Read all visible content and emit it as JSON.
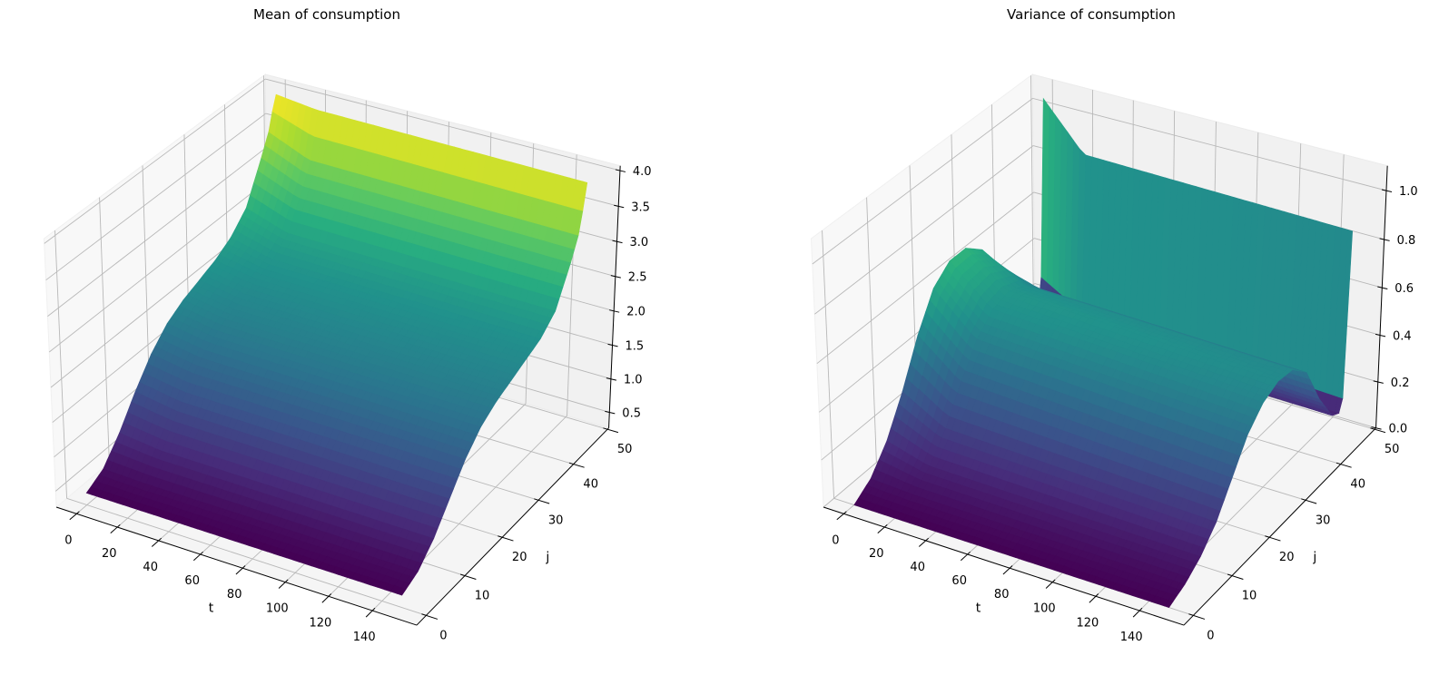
{
  "chart_data": [
    {
      "type": "surface",
      "title": "Mean of consumption",
      "xlabel": "t",
      "ylabel": "j",
      "colormap": "viridis",
      "grid": true,
      "xlim": [
        -10,
        160
      ],
      "ylim": [
        -2.4,
        50.4
      ],
      "zlim": [
        0.264,
        4.066
      ],
      "xticks": [
        "0",
        "20",
        "40",
        "60",
        "80",
        "100",
        "120",
        "140"
      ],
      "yticks": [
        "0",
        "10",
        "20",
        "30",
        "40",
        "50"
      ],
      "zticks": [
        "0.5",
        "1.0",
        "1.5",
        "2.0",
        "2.5",
        "3.0",
        "3.5",
        "4.0"
      ],
      "t_range": [
        0,
        149
      ],
      "t_samples": [
        0,
        20,
        149
      ],
      "j_samples": [
        0,
        4,
        8,
        12,
        16,
        20,
        24,
        28,
        32,
        36,
        40,
        44,
        46,
        47,
        48
      ],
      "z": [
        [
          0.44,
          0.58,
          0.9,
          1.3,
          1.65,
          1.9,
          2.05,
          2.15,
          2.25,
          2.4,
          2.65,
          3.2,
          3.5,
          3.75,
          3.95
        ],
        [
          0.44,
          0.56,
          0.83,
          1.2,
          1.55,
          1.8,
          1.95,
          2.05,
          2.15,
          2.25,
          2.45,
          2.95,
          3.25,
          3.55,
          3.88
        ],
        [
          0.44,
          0.55,
          0.8,
          1.15,
          1.5,
          1.75,
          1.9,
          2.0,
          2.1,
          2.2,
          2.4,
          2.9,
          3.2,
          3.5,
          3.85
        ]
      ]
    },
    {
      "type": "surface",
      "title": "Variance of consumption",
      "xlabel": "t",
      "ylabel": "j",
      "colormap": "viridis",
      "grid": true,
      "xlim": [
        -10,
        160
      ],
      "ylim": [
        -2.4,
        50.4
      ],
      "zlim": [
        0.0,
        1.1
      ],
      "xticks": [
        "0",
        "20",
        "40",
        "60",
        "80",
        "100",
        "120",
        "140"
      ],
      "yticks": [
        "0",
        "10",
        "20",
        "30",
        "40",
        "50"
      ],
      "zticks": [
        "0.0",
        "0.2",
        "0.4",
        "0.6",
        "0.8",
        "1.0"
      ],
      "t_range": [
        0,
        149
      ],
      "t_samples": [
        0,
        20,
        149
      ],
      "j_samples": [
        0,
        4,
        8,
        12,
        16,
        20,
        24,
        28,
        32,
        36,
        40,
        44,
        46,
        47,
        48
      ],
      "z": [
        [
          0.0,
          0.05,
          0.15,
          0.3,
          0.48,
          0.62,
          0.68,
          0.68,
          0.62,
          0.5,
          0.35,
          0.2,
          0.15,
          0.3,
          1.05
        ],
        [
          0.0,
          0.04,
          0.1,
          0.2,
          0.34,
          0.46,
          0.53,
          0.55,
          0.52,
          0.45,
          0.3,
          0.14,
          0.12,
          0.2,
          0.86
        ],
        [
          0.0,
          0.03,
          0.08,
          0.16,
          0.28,
          0.4,
          0.47,
          0.5,
          0.49,
          0.42,
          0.25,
          0.12,
          0.1,
          0.15,
          0.84
        ]
      ]
    }
  ]
}
